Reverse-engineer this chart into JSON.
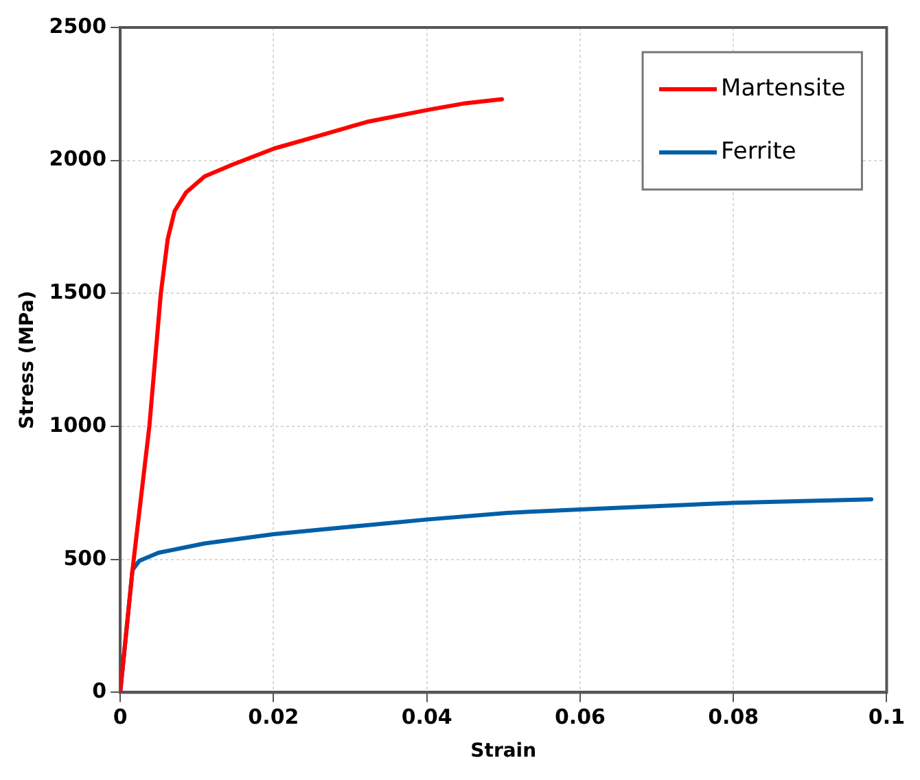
{
  "chart_data": {
    "type": "line",
    "xlabel": "Strain",
    "ylabel": "Stress (MPa)",
    "xlim": [
      0,
      0.1
    ],
    "xticks": [
      0,
      0.02,
      0.04,
      0.06,
      0.08,
      0.1
    ],
    "ylim": [
      0,
      2500
    ],
    "yticks": [
      0,
      500,
      1000,
      1500,
      2000,
      2500
    ],
    "grid": true,
    "legend": "top right",
    "marker": "none",
    "line_style": "solid",
    "series": [
      {
        "name": "Martensite",
        "color": "#ff0000",
        "x": [
          0,
          0.0016,
          0.0038,
          0.0053,
          0.0062,
          0.0071,
          0.0086,
          0.011,
          0.0147,
          0.0201,
          0.0262,
          0.0322,
          0.0401,
          0.045,
          0.0498
        ],
        "values": [
          0,
          460,
          1000,
          1500,
          1705,
          1810,
          1880,
          1940,
          1985,
          2045,
          2095,
          2145,
          2190,
          2215,
          2230
        ]
      },
      {
        "name": "Ferrite",
        "color": "#005fa8",
        "x": [
          0,
          0.0016,
          0.0025,
          0.005,
          0.011,
          0.02,
          0.029,
          0.04,
          0.0505,
          0.06,
          0.0803,
          0.098
        ],
        "values": [
          0,
          460,
          495,
          525,
          560,
          595,
          620,
          650,
          675,
          688,
          713,
          726
        ]
      }
    ]
  }
}
